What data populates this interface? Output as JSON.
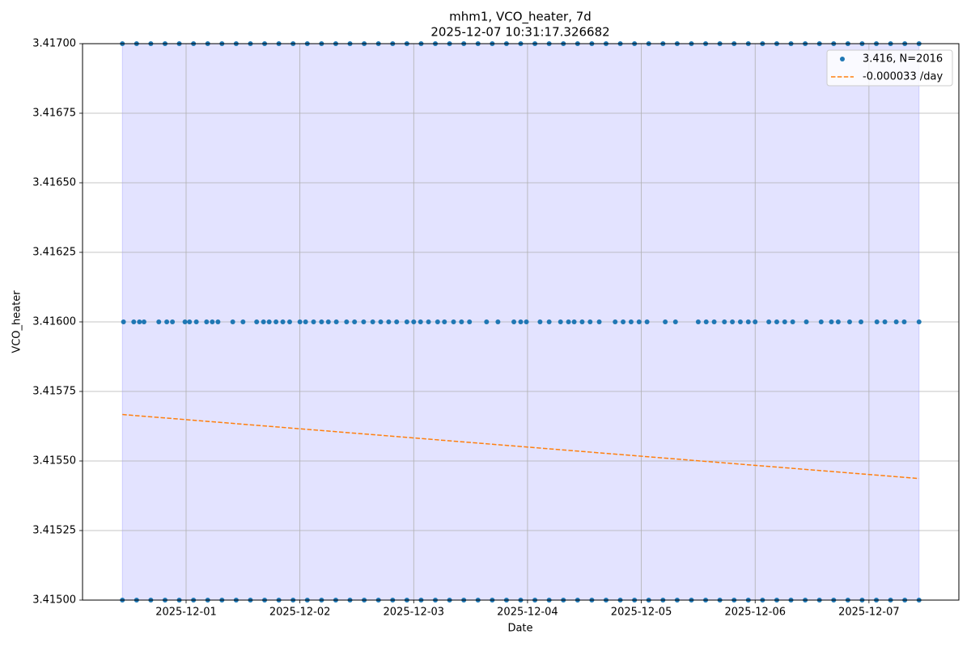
{
  "chart_data": {
    "type": "scatter",
    "title": "mhm1, VCO_heater, 7d",
    "subtitle": "2025-12-07 10:31:17.326682",
    "x_label": "Date",
    "y_label": "VCO_heater",
    "xlim": [
      0.09,
      7.79
    ],
    "ylim": [
      3.415,
      3.417
    ],
    "xticks": [
      {
        "value": 1,
        "label": "2025-12-01"
      },
      {
        "value": 2,
        "label": "2025-12-02"
      },
      {
        "value": 3,
        "label": "2025-12-03"
      },
      {
        "value": 4,
        "label": "2025-12-04"
      },
      {
        "value": 5,
        "label": "2025-12-05"
      },
      {
        "value": 6,
        "label": "2025-12-06"
      },
      {
        "value": 7,
        "label": "2025-12-07"
      }
    ],
    "yticks": [
      {
        "value": 3.415,
        "label": "3.41500"
      },
      {
        "value": 3.41525,
        "label": "3.41525"
      },
      {
        "value": 3.4155,
        "label": "3.41550"
      },
      {
        "value": 3.41575,
        "label": "3.41575"
      },
      {
        "value": 3.416,
        "label": "3.41600"
      },
      {
        "value": 3.41625,
        "label": "3.41625"
      },
      {
        "value": 3.4165,
        "label": "3.41650"
      },
      {
        "value": 3.41675,
        "label": "3.41675"
      },
      {
        "value": 3.417,
        "label": "3.41700"
      }
    ],
    "grid": true,
    "legend": "upper right",
    "shaded_span": [
      0.44,
      7.44
    ],
    "span_color": "#0000ff",
    "series": [
      {
        "name": "3.416, N=2016",
        "type": "scatter",
        "color": "#1f77b4",
        "x": [
          0.44,
          0.565,
          0.69,
          0.815,
          0.94,
          1.065,
          1.19,
          1.315,
          1.44,
          1.565,
          1.69,
          1.815,
          1.94,
          2.065,
          2.19,
          2.315,
          2.44,
          2.565,
          2.69,
          2.815,
          2.94,
          3.065,
          3.19,
          3.315,
          3.44,
          3.565,
          3.69,
          3.815,
          3.94,
          4.065,
          4.19,
          4.315,
          4.44,
          4.565,
          4.69,
          4.815,
          4.94,
          5.065,
          5.19,
          5.315,
          5.44,
          5.565,
          5.69,
          5.815,
          5.94,
          6.065,
          6.19,
          6.315,
          6.44,
          6.565,
          6.69,
          6.815,
          6.94,
          7.065,
          7.19,
          7.315,
          7.44,
          0.44,
          0.565,
          0.69,
          0.815,
          0.94,
          1.065,
          1.19,
          1.315,
          1.44,
          1.565,
          1.69,
          1.815,
          1.94,
          2.065,
          2.19,
          2.315,
          2.44,
          2.565,
          2.69,
          2.815,
          2.94,
          3.065,
          3.19,
          3.315,
          3.44,
          3.565,
          3.69,
          3.815,
          3.94,
          4.065,
          4.19,
          4.315,
          4.44,
          4.565,
          4.69,
          4.815,
          4.94,
          5.065,
          5.19,
          5.315,
          5.44,
          5.565,
          5.69,
          5.815,
          5.94,
          6.065,
          6.19,
          6.315,
          6.44,
          6.565,
          6.69,
          6.815,
          6.94,
          7.065,
          7.19,
          7.315,
          7.44,
          0.45,
          0.54,
          0.59,
          0.63,
          0.76,
          0.83,
          0.88,
          0.99,
          1.03,
          1.09,
          1.18,
          1.23,
          1.28,
          1.41,
          1.5,
          1.62,
          1.68,
          1.73,
          1.79,
          1.85,
          1.91,
          2.0,
          2.05,
          2.12,
          2.19,
          2.25,
          2.32,
          2.41,
          2.48,
          2.56,
          2.64,
          2.71,
          2.78,
          2.85,
          2.94,
          3.0,
          3.06,
          3.13,
          3.21,
          3.27,
          3.35,
          3.42,
          3.49,
          3.64,
          3.74,
          3.88,
          3.94,
          3.99,
          4.11,
          4.19,
          4.29,
          4.36,
          4.41,
          4.48,
          4.55,
          4.63,
          4.77,
          4.84,
          4.91,
          4.98,
          5.05,
          5.21,
          5.3,
          5.5,
          5.57,
          5.64,
          5.73,
          5.8,
          5.87,
          5.94,
          6.0,
          6.12,
          6.19,
          6.26,
          6.33,
          6.45,
          6.58,
          6.67,
          6.73,
          6.83,
          6.93,
          7.07,
          7.14,
          7.24,
          7.31,
          7.44
        ],
        "values": [
          3.417,
          3.417,
          3.417,
          3.417,
          3.417,
          3.417,
          3.417,
          3.417,
          3.417,
          3.417,
          3.417,
          3.417,
          3.417,
          3.417,
          3.417,
          3.417,
          3.417,
          3.417,
          3.417,
          3.417,
          3.417,
          3.417,
          3.417,
          3.417,
          3.417,
          3.417,
          3.417,
          3.417,
          3.417,
          3.417,
          3.417,
          3.417,
          3.417,
          3.417,
          3.417,
          3.417,
          3.417,
          3.417,
          3.417,
          3.417,
          3.417,
          3.417,
          3.417,
          3.417,
          3.417,
          3.417,
          3.417,
          3.417,
          3.417,
          3.417,
          3.417,
          3.417,
          3.417,
          3.417,
          3.417,
          3.417,
          3.417,
          3.415,
          3.415,
          3.415,
          3.415,
          3.415,
          3.415,
          3.415,
          3.415,
          3.415,
          3.415,
          3.415,
          3.415,
          3.415,
          3.415,
          3.415,
          3.415,
          3.415,
          3.415,
          3.415,
          3.415,
          3.415,
          3.415,
          3.415,
          3.415,
          3.415,
          3.415,
          3.415,
          3.415,
          3.415,
          3.415,
          3.415,
          3.415,
          3.415,
          3.415,
          3.415,
          3.415,
          3.415,
          3.415,
          3.415,
          3.415,
          3.415,
          3.415,
          3.415,
          3.415,
          3.415,
          3.415,
          3.415,
          3.415,
          3.415,
          3.415,
          3.415,
          3.415,
          3.415,
          3.415,
          3.415,
          3.415,
          3.415,
          3.416,
          3.416,
          3.416,
          3.416,
          3.416,
          3.416,
          3.416,
          3.416,
          3.416,
          3.416,
          3.416,
          3.416,
          3.416,
          3.416,
          3.416,
          3.416,
          3.416,
          3.416,
          3.416,
          3.416,
          3.416,
          3.416,
          3.416,
          3.416,
          3.416,
          3.416,
          3.416,
          3.416,
          3.416,
          3.416,
          3.416,
          3.416,
          3.416,
          3.416,
          3.416,
          3.416,
          3.416,
          3.416,
          3.416,
          3.416,
          3.416,
          3.416,
          3.416,
          3.416,
          3.416,
          3.416,
          3.416,
          3.416,
          3.416,
          3.416,
          3.416,
          3.416,
          3.416,
          3.416,
          3.416,
          3.416,
          3.416,
          3.416,
          3.416,
          3.416,
          3.416,
          3.416,
          3.416,
          3.416,
          3.416,
          3.416,
          3.416,
          3.416,
          3.416,
          3.416,
          3.416,
          3.416,
          3.416,
          3.416,
          3.416,
          3.416,
          3.416,
          3.416,
          3.416,
          3.416,
          3.416,
          3.416,
          3.416,
          3.416,
          3.416,
          3.416
        ]
      },
      {
        "name": "-0.000033 /day",
        "type": "line",
        "dashed": true,
        "color": "#ff7f0e",
        "x": [
          0.44,
          7.44
        ],
        "values": [
          3.415667,
          3.415437
        ]
      }
    ]
  }
}
